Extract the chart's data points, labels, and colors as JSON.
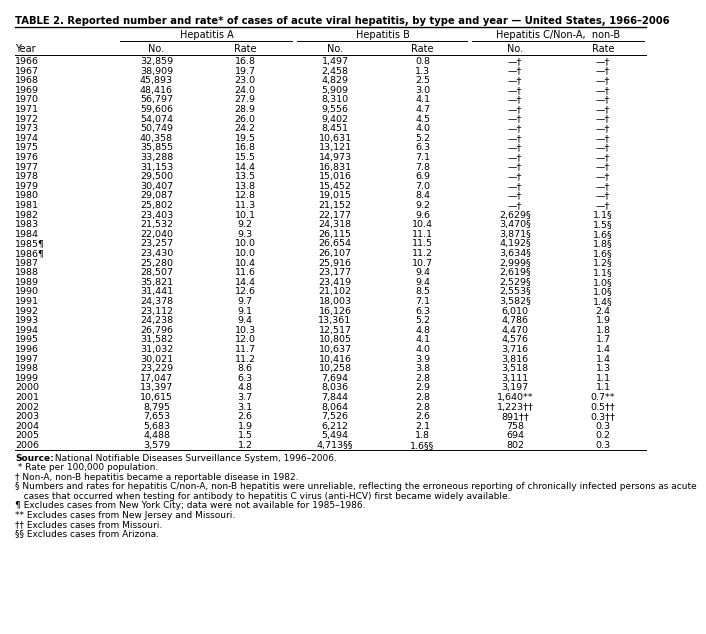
{
  "title": "TABLE 2. Reported number and rate* of cases of acute viral hepatitis, by type and year — United States, 1966–2006",
  "rows": [
    [
      "1966",
      "32,859",
      "16.8",
      "1,497",
      "0.8",
      "—†",
      "—†"
    ],
    [
      "1967",
      "38,909",
      "19.7",
      "2,458",
      "1.3",
      "—†",
      "—†"
    ],
    [
      "1968",
      "45,893",
      "23.0",
      "4,829",
      "2.5",
      "—†",
      "—†"
    ],
    [
      "1969",
      "48,416",
      "24.0",
      "5,909",
      "3.0",
      "—†",
      "—†"
    ],
    [
      "1970",
      "56,797",
      "27.9",
      "8,310",
      "4.1",
      "—†",
      "—†"
    ],
    [
      "1971",
      "59,606",
      "28.9",
      "9,556",
      "4.7",
      "—†",
      "—†"
    ],
    [
      "1972",
      "54,074",
      "26.0",
      "9,402",
      "4.5",
      "—†",
      "—†"
    ],
    [
      "1973",
      "50,749",
      "24.2",
      "8,451",
      "4.0",
      "—†",
      "—†"
    ],
    [
      "1974",
      "40,358",
      "19.5",
      "10,631",
      "5.2",
      "—†",
      "—†"
    ],
    [
      "1975",
      "35,855",
      "16.8",
      "13,121",
      "6.3",
      "—†",
      "—†"
    ],
    [
      "1976",
      "33,288",
      "15.5",
      "14,973",
      "7.1",
      "—†",
      "—†"
    ],
    [
      "1977",
      "31,153",
      "14.4",
      "16,831",
      "7.8",
      "—†",
      "—†"
    ],
    [
      "1978",
      "29,500",
      "13.5",
      "15,016",
      "6.9",
      "—†",
      "—†"
    ],
    [
      "1979",
      "30,407",
      "13.8",
      "15,452",
      "7.0",
      "—†",
      "—†"
    ],
    [
      "1980",
      "29,087",
      "12.8",
      "19,015",
      "8.4",
      "—†",
      "—†"
    ],
    [
      "1981",
      "25,802",
      "11.3",
      "21,152",
      "9.2",
      "—†",
      "—†"
    ],
    [
      "1982",
      "23,403",
      "10.1",
      "22,177",
      "9.6",
      "2,629§",
      "1.1§"
    ],
    [
      "1983",
      "21,532",
      "9.2",
      "24,318",
      "10.4",
      "3,470§",
      "1.5§"
    ],
    [
      "1984",
      "22,040",
      "9.3",
      "26,115",
      "11.1",
      "3,871§",
      "1.6§"
    ],
    [
      "1985¶",
      "23,257",
      "10.0",
      "26,654",
      "11.5",
      "4,192§",
      "1.8§"
    ],
    [
      "1986¶",
      "23,430",
      "10.0",
      "26,107",
      "11.2",
      "3,634§",
      "1.6§"
    ],
    [
      "1987",
      "25,280",
      "10.4",
      "25,916",
      "10.7",
      "2,999§",
      "1.2§"
    ],
    [
      "1988",
      "28,507",
      "11.6",
      "23,177",
      "9.4",
      "2,619§",
      "1.1§"
    ],
    [
      "1989",
      "35,821",
      "14.4",
      "23,419",
      "9.4",
      "2,529§",
      "1.0§"
    ],
    [
      "1990",
      "31,441",
      "12.6",
      "21,102",
      "8.5",
      "2,553§",
      "1.0§"
    ],
    [
      "1991",
      "24,378",
      "9.7",
      "18,003",
      "7.1",
      "3,582§",
      "1.4§"
    ],
    [
      "1992",
      "23,112",
      "9.1",
      "16,126",
      "6.3",
      "6,010",
      "2.4"
    ],
    [
      "1993",
      "24,238",
      "9.4",
      "13,361",
      "5.2",
      "4,786",
      "1.9"
    ],
    [
      "1994",
      "26,796",
      "10.3",
      "12,517",
      "4.8",
      "4,470",
      "1.8"
    ],
    [
      "1995",
      "31,582",
      "12.0",
      "10,805",
      "4.1",
      "4,576",
      "1.7"
    ],
    [
      "1996",
      "31,032",
      "11.7",
      "10,637",
      "4.0",
      "3,716",
      "1.4"
    ],
    [
      "1997",
      "30,021",
      "11.2",
      "10,416",
      "3.9",
      "3,816",
      "1.4"
    ],
    [
      "1998",
      "23,229",
      "8.6",
      "10,258",
      "3.8",
      "3,518",
      "1.3"
    ],
    [
      "1999",
      "17,047",
      "6.3",
      "7,694",
      "2.8",
      "3,111",
      "1.1"
    ],
    [
      "2000",
      "13,397",
      "4.8",
      "8,036",
      "2.9",
      "3,197",
      "1.1"
    ],
    [
      "2001",
      "10,615",
      "3.7",
      "7,844",
      "2.8",
      "1,640**",
      "0.7**"
    ],
    [
      "2002",
      "8,795",
      "3.1",
      "8,064",
      "2.8",
      "1,223††",
      "0.5††"
    ],
    [
      "2003",
      "7,653",
      "2.6",
      "7,526",
      "2.6",
      "891††",
      "0.3††"
    ],
    [
      "2004",
      "5,683",
      "1.9",
      "6,212",
      "2.1",
      "758",
      "0.3"
    ],
    [
      "2005",
      "4,488",
      "1.5",
      "5,494",
      "1.8",
      "694",
      "0.2"
    ],
    [
      "2006",
      "3,579",
      "1.2",
      "4,713§§",
      "1.6§§",
      "802",
      "0.3"
    ]
  ],
  "footnotes": [
    [
      "Source:",
      " National Notifiable Diseases Surveillance System, 1996–2006."
    ],
    [
      " * Rate per 100,000 population.",
      ""
    ],
    [
      "†",
      " Non-A, non-B hepatitis became a reportable disease in 1982."
    ],
    [
      "§",
      " Numbers and rates for hepatitis C/non-A, non-B hepatitis were unreliable, reflecting the erroneous reporting of chronically infected persons as acute"
    ],
    [
      "",
      "   cases that occurred when testing for antibody to hepatitis C virus (anti-HCV) first became widely available."
    ],
    [
      "¶",
      " Excludes cases from New York City; data were not available for 1985–1986."
    ],
    [
      "**",
      " Excludes cases from New Jersey and Missouri."
    ],
    [
      "††",
      " Excludes cases from Missouri."
    ],
    [
      "§§",
      " Excludes cases from Arizona."
    ]
  ],
  "background_color": "#ffffff",
  "text_color": "#000000",
  "font_size": 6.8,
  "header_font_size": 7.0,
  "title_font_size": 7.2,
  "footnote_font_size": 6.5
}
